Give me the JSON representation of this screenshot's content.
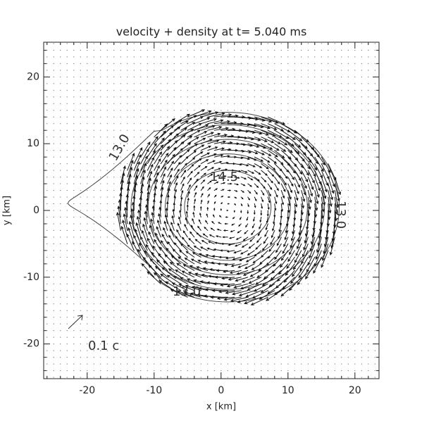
{
  "chart_data": {
    "type": "quiver",
    "title": "velocity + density at t=  5.040 ms",
    "x_label": "x [km]",
    "y_label": "y [km]",
    "xlim": [
      -26.5,
      23.6
    ],
    "ylim": [
      -25.2,
      25.2
    ],
    "xticks": [
      -20,
      -10,
      0,
      10,
      20
    ],
    "yticks": [
      -20,
      -10,
      0,
      10,
      20
    ],
    "contour_labels": [
      "13.0",
      "14.5",
      "13.0",
      "13.0"
    ],
    "reference_label": "0.1 c"
  }
}
